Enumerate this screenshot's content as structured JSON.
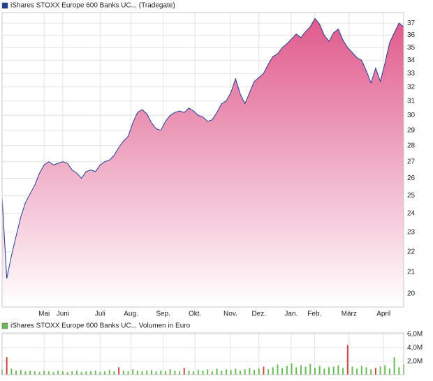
{
  "chart_data": [
    {
      "type": "area",
      "title": "iShares STOXX Europe 600 Banks UC... (Tradegate)",
      "color": "#1f3f95",
      "fill_top": "#e05a8c",
      "fill_bottom": "#ffffff",
      "log_scale": true,
      "grid": true,
      "values": [
        24.9,
        20.7,
        21.8,
        22.8,
        23.8,
        24.6,
        25.1,
        25.6,
        26.3,
        26.8,
        27.0,
        26.8,
        26.9,
        27.0,
        26.9,
        26.5,
        26.3,
        26.0,
        26.4,
        26.5,
        26.4,
        26.8,
        27.0,
        27.1,
        27.4,
        27.9,
        28.3,
        28.6,
        29.5,
        30.2,
        30.4,
        30.1,
        29.5,
        29.1,
        29.0,
        29.6,
        30.0,
        30.2,
        30.3,
        30.2,
        30.5,
        30.3,
        30.0,
        29.9,
        29.6,
        29.7,
        30.2,
        30.8,
        31.0,
        31.6,
        32.6,
        31.5,
        30.8,
        31.6,
        32.4,
        32.7,
        33.0,
        33.7,
        34.3,
        34.5,
        35.0,
        35.3,
        35.7,
        36.1,
        35.8,
        36.3,
        36.7,
        37.4,
        36.9,
        36.0,
        35.5,
        36.2,
        36.5,
        35.6,
        35.0,
        34.6,
        34.2,
        34.0,
        33.2,
        32.3,
        33.4,
        32.4,
        33.8,
        35.4,
        36.2,
        37.0,
        36.7
      ],
      "xlim": [
        0,
        86
      ],
      "xticks": [
        {
          "value": 9,
          "label": "Mai"
        },
        {
          "value": 13,
          "label": "Juni"
        },
        {
          "value": 21,
          "label": "Juli"
        },
        {
          "value": 27.6,
          "label": "Aug."
        },
        {
          "value": 34.5,
          "label": "Sep."
        },
        {
          "value": 41.3,
          "label": "Okt."
        },
        {
          "value": 48.9,
          "label": "Nov."
        },
        {
          "value": 55,
          "label": "Dez."
        },
        {
          "value": 61.9,
          "label": "Jan."
        },
        {
          "value": 66.9,
          "label": "Feb."
        },
        {
          "value": 74.3,
          "label": "März"
        },
        {
          "value": 81.7,
          "label": "April"
        }
      ],
      "ylim": [
        19.4,
        37.9
      ],
      "yticks": [
        20,
        21,
        22,
        23,
        24,
        25,
        26,
        27,
        28,
        29,
        30,
        31,
        32,
        33,
        34,
        35,
        36,
        37
      ]
    },
    {
      "type": "bar",
      "title": "iShares STOXX Europe 600 Banks UC... Volumen in Euro",
      "color": "#66bb55",
      "grid": true,
      "values": [
        0.8,
        2.6,
        0.9,
        0.6,
        0.7,
        0.5,
        0.6,
        0.5,
        0.4,
        0.6,
        0.5,
        0.4,
        0.6,
        0.5,
        0.4,
        0.5,
        0.6,
        0.4,
        0.5,
        0.5,
        0.6,
        0.4,
        0.5,
        0.7,
        0.5,
        1.1,
        0.6,
        0.5,
        0.8,
        0.6,
        0.5,
        0.6,
        0.7,
        0.5,
        0.6,
        0.5,
        0.8,
        0.6,
        0.5,
        1.0,
        0.6,
        0.5,
        0.7,
        0.6,
        0.8,
        0.5,
        0.9,
        0.6,
        0.8,
        0.7,
        0.9,
        0.6,
        0.8,
        1.0,
        0.7,
        0.9,
        1.2,
        0.8,
        1.1,
        1.5,
        1.0,
        1.3,
        1.7,
        1.1,
        1.4,
        1.2,
        1.6,
        1.0,
        1.3,
        0.9,
        1.1,
        1.2,
        1.4,
        1.0,
        4.4,
        1.2,
        0.9,
        1.3,
        1.1,
        0.8,
        1.0,
        1.2,
        1.4,
        0.9,
        2.6,
        1.1,
        1.5
      ],
      "colors": [
        "#66bb55",
        "#cc4444",
        "#66bb55",
        "#66bb55",
        "#66bb55",
        "#66bb55",
        "#66bb55",
        "#66bb55",
        "#66bb55",
        "#66bb55",
        "#66bb55",
        "#66bb55",
        "#66bb55",
        "#66bb55",
        "#66bb55",
        "#66bb55",
        "#66bb55",
        "#66bb55",
        "#66bb55",
        "#66bb55",
        "#66bb55",
        "#66bb55",
        "#66bb55",
        "#66bb55",
        "#66bb55",
        "#cc4444",
        "#66bb55",
        "#66bb55",
        "#66bb55",
        "#66bb55",
        "#66bb55",
        "#66bb55",
        "#66bb55",
        "#66bb55",
        "#66bb55",
        "#66bb55",
        "#66bb55",
        "#66bb55",
        "#66bb55",
        "#cc4444",
        "#66bb55",
        "#66bb55",
        "#66bb55",
        "#66bb55",
        "#66bb55",
        "#66bb55",
        "#66bb55",
        "#66bb55",
        "#66bb55",
        "#66bb55",
        "#66bb55",
        "#66bb55",
        "#66bb55",
        "#66bb55",
        "#66bb55",
        "#66bb55",
        "#cc4444",
        "#66bb55",
        "#66bb55",
        "#66bb55",
        "#66bb55",
        "#66bb55",
        "#66bb55",
        "#66bb55",
        "#66bb55",
        "#66bb55",
        "#66bb55",
        "#66bb55",
        "#66bb55",
        "#66bb55",
        "#66bb55",
        "#66bb55",
        "#66bb55",
        "#66bb55",
        "#cc4444",
        "#66bb55",
        "#66bb55",
        "#66bb55",
        "#66bb55",
        "#66bb55",
        "#cc4444",
        "#66bb55",
        "#66bb55",
        "#66bb55",
        "#66bb55",
        "#66bb55",
        "#66bb55"
      ],
      "xlim": [
        0,
        86
      ],
      "ylim": [
        0,
        6.2
      ],
      "yticks": [
        {
          "value": 2,
          "label": "2,0M"
        },
        {
          "value": 4,
          "label": "4,0M"
        },
        {
          "value": 6,
          "label": "6,0M"
        }
      ]
    }
  ]
}
